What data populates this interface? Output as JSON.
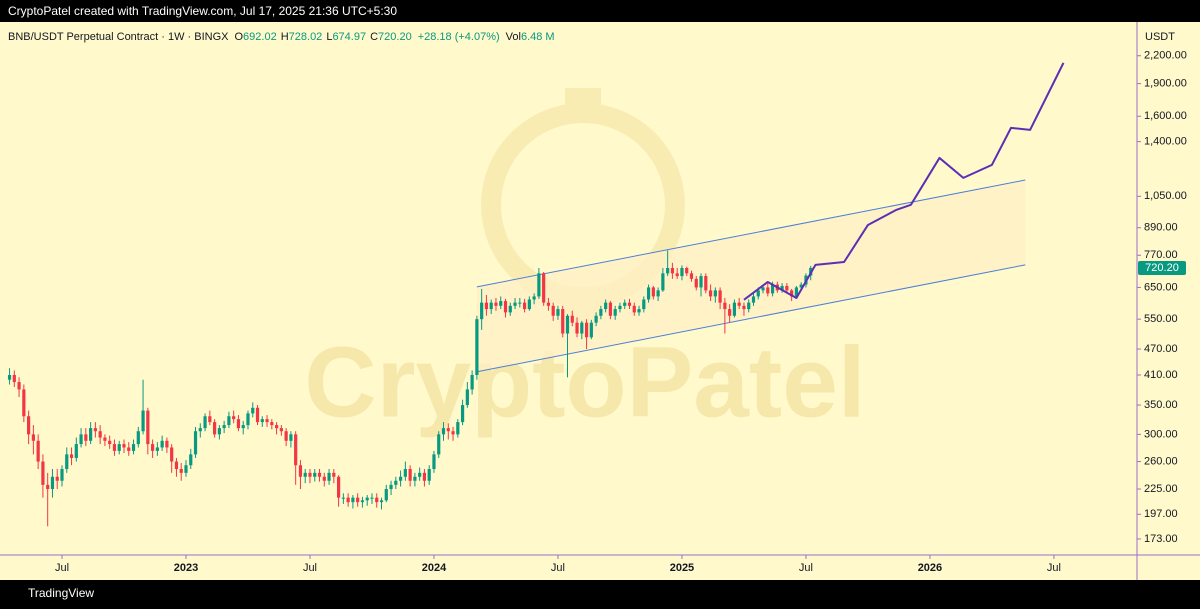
{
  "topbar": "CryptoPatel created with TradingView.com, Jul 17, 2025 21:36 UTC+5:30",
  "footer": "TradingView",
  "watermark": "CryptoPatel",
  "chart_data": {
    "type": "candlestick",
    "title": "BNB/USDT Perpetual Contract · 1W · BINGX",
    "legend_items": [
      {
        "label": "O",
        "value": "692.02"
      },
      {
        "label": "H",
        "value": "728.02"
      },
      {
        "label": "L",
        "value": "674.97"
      },
      {
        "label": "C",
        "value": "720.20"
      }
    ],
    "change": "+28.18 (+4.07%)",
    "volume": {
      "label": "Vol",
      "value": "6.48 M"
    },
    "currency": "USDT",
    "last_label": "720.20",
    "up_color": "#089981",
    "down_color": "#f23645",
    "log_scale": true,
    "xlim": [
      -2,
      236
    ],
    "ylim": [
      159,
      2600
    ],
    "xticks": [
      {
        "value": 11,
        "label": "Jul"
      },
      {
        "value": 37,
        "label": "2023"
      },
      {
        "value": 63,
        "label": "Jul"
      },
      {
        "value": 89,
        "label": "2024"
      },
      {
        "value": 115,
        "label": "Jul"
      },
      {
        "value": 141,
        "label": "2025"
      },
      {
        "value": 167,
        "label": "Jul"
      },
      {
        "value": 193,
        "label": "2026"
      },
      {
        "value": 219,
        "label": "Jul"
      }
    ],
    "yticks": [
      {
        "value": 173,
        "label": "173.00"
      },
      {
        "value": 197,
        "label": "197.00"
      },
      {
        "value": 225,
        "label": "225.00"
      },
      {
        "value": 260,
        "label": "260.00"
      },
      {
        "value": 300,
        "label": "300.00"
      },
      {
        "value": 350,
        "label": "350.00"
      },
      {
        "value": 410,
        "label": "410.00"
      },
      {
        "value": 470,
        "label": "470.00"
      },
      {
        "value": 550,
        "label": "550.00"
      },
      {
        "value": 650,
        "label": "650.00"
      },
      {
        "value": 770,
        "label": "770.00"
      },
      {
        "value": 890,
        "label": "890.00"
      },
      {
        "value": 1050,
        "label": "1,050.00"
      },
      {
        "value": 1400,
        "label": "1,400.00"
      },
      {
        "value": 1600,
        "label": "1,600.00"
      },
      {
        "value": 1900,
        "label": "1,900.00"
      },
      {
        "value": 2200,
        "label": "2,200.00"
      }
    ],
    "open": [
      400,
      410,
      395,
      380,
      330,
      300,
      290,
      260,
      230,
      225,
      240,
      235,
      250,
      270,
      265,
      285,
      300,
      290,
      310,
      305,
      295,
      290,
      285,
      275,
      285,
      280,
      275,
      285,
      305,
      340,
      285,
      275,
      280,
      290,
      280,
      260,
      250,
      245,
      255,
      270,
      305,
      310,
      330,
      320,
      300,
      310,
      315,
      330,
      325,
      310,
      315,
      335,
      345,
      320,
      325,
      320,
      315,
      310,
      305,
      290,
      300,
      255,
      240,
      245,
      240,
      245,
      240,
      235,
      245,
      240,
      215,
      215,
      210,
      215,
      210,
      212,
      215,
      215,
      210,
      212,
      225,
      230,
      235,
      240,
      250,
      235,
      240,
      245,
      235,
      250,
      270,
      300,
      310,
      305,
      300,
      320,
      350,
      380,
      410,
      550,
      600,
      580,
      600,
      590,
      605,
      570,
      590,
      600,
      600,
      580,
      610,
      620,
      700,
      600,
      590,
      560,
      580,
      510,
      560,
      540,
      510,
      540,
      500,
      540,
      560,
      580,
      600,
      560,
      580,
      590,
      600,
      590,
      570,
      580,
      610,
      650,
      620,
      640,
      700,
      720,
      700,
      690,
      720,
      700,
      680,
      650,
      690,
      640,
      620,
      640,
      600,
      580,
      560,
      600,
      590,
      580,
      600,
      620,
      640,
      650,
      630,
      660,
      640,
      655,
      640,
      620,
      650,
      660,
      692.02
    ],
    "high": [
      425,
      420,
      405,
      390,
      340,
      315,
      300,
      270,
      245,
      250,
      250,
      255,
      280,
      280,
      295,
      310,
      310,
      320,
      320,
      315,
      300,
      298,
      292,
      290,
      292,
      288,
      292,
      312,
      400,
      345,
      292,
      288,
      298,
      295,
      285,
      265,
      258,
      262,
      278,
      312,
      318,
      335,
      340,
      325,
      315,
      322,
      338,
      340,
      332,
      322,
      340,
      355,
      350,
      330,
      332,
      325,
      320,
      315,
      310,
      305,
      305,
      262,
      250,
      250,
      250,
      250,
      245,
      250,
      250,
      242,
      220,
      220,
      218,
      220,
      216,
      218,
      220,
      220,
      215,
      230,
      235,
      240,
      248,
      260,
      255,
      245,
      252,
      250,
      255,
      275,
      305,
      320,
      318,
      312,
      325,
      360,
      395,
      420,
      560,
      645,
      625,
      610,
      615,
      620,
      612,
      600,
      615,
      615,
      612,
      620,
      630,
      720,
      705,
      615,
      600,
      590,
      590,
      565,
      575,
      555,
      545,
      550,
      548,
      570,
      590,
      610,
      605,
      590,
      600,
      610,
      612,
      600,
      590,
      620,
      660,
      655,
      650,
      720,
      790,
      740,
      720,
      730,
      725,
      710,
      690,
      700,
      700,
      660,
      650,
      650,
      615,
      595,
      610,
      615,
      600,
      610,
      630,
      650,
      660,
      665,
      670,
      670,
      665,
      665,
      645,
      655,
      668,
      700,
      728.02
    ],
    "low": [
      390,
      385,
      365,
      320,
      285,
      270,
      250,
      215,
      185,
      215,
      225,
      228,
      245,
      255,
      260,
      280,
      282,
      285,
      295,
      285,
      282,
      278,
      268,
      270,
      272,
      268,
      270,
      280,
      300,
      270,
      265,
      268,
      275,
      272,
      245,
      240,
      235,
      240,
      250,
      265,
      295,
      305,
      315,
      295,
      292,
      302,
      310,
      318,
      305,
      300,
      308,
      328,
      315,
      312,
      312,
      308,
      300,
      298,
      282,
      280,
      230,
      225,
      232,
      232,
      234,
      234,
      228,
      230,
      232,
      205,
      208,
      205,
      203,
      205,
      204,
      206,
      208,
      204,
      202,
      210,
      218,
      225,
      228,
      235,
      228,
      228,
      235,
      228,
      230,
      245,
      265,
      290,
      292,
      290,
      295,
      315,
      345,
      370,
      400,
      520,
      560,
      565,
      575,
      580,
      555,
      560,
      580,
      585,
      570,
      575,
      595,
      612,
      590,
      575,
      545,
      548,
      500,
      405,
      530,
      500,
      495,
      470,
      495,
      530,
      550,
      570,
      550,
      548,
      570,
      580,
      580,
      560,
      560,
      570,
      600,
      610,
      605,
      635,
      690,
      680,
      680,
      675,
      690,
      670,
      640,
      620,
      630,
      605,
      600,
      580,
      510,
      540,
      555,
      580,
      560,
      570,
      590,
      610,
      630,
      620,
      620,
      632,
      632,
      630,
      605,
      612,
      640,
      650,
      674.97
    ],
    "close": [
      410,
      395,
      380,
      330,
      300,
      290,
      260,
      230,
      225,
      240,
      235,
      250,
      270,
      265,
      285,
      300,
      290,
      310,
      305,
      295,
      290,
      285,
      275,
      285,
      280,
      275,
      285,
      305,
      340,
      285,
      275,
      280,
      290,
      280,
      260,
      250,
      245,
      255,
      270,
      305,
      310,
      330,
      320,
      300,
      310,
      315,
      330,
      325,
      310,
      315,
      335,
      345,
      320,
      325,
      320,
      315,
      310,
      305,
      290,
      300,
      255,
      240,
      245,
      240,
      245,
      240,
      235,
      245,
      240,
      215,
      215,
      210,
      215,
      210,
      212,
      215,
      215,
      210,
      212,
      225,
      230,
      235,
      240,
      250,
      235,
      240,
      245,
      235,
      250,
      270,
      300,
      310,
      305,
      300,
      320,
      350,
      380,
      410,
      550,
      600,
      580,
      600,
      590,
      605,
      570,
      590,
      600,
      600,
      580,
      610,
      620,
      700,
      600,
      590,
      560,
      580,
      510,
      560,
      540,
      510,
      540,
      500,
      540,
      560,
      580,
      600,
      560,
      580,
      590,
      600,
      590,
      570,
      580,
      610,
      650,
      620,
      640,
      700,
      720,
      700,
      690,
      720,
      700,
      680,
      650,
      690,
      640,
      620,
      640,
      600,
      580,
      560,
      600,
      590,
      580,
      600,
      620,
      640,
      650,
      630,
      660,
      640,
      655,
      640,
      620,
      650,
      660,
      692.02,
      720.2
    ],
    "channel": {
      "color": "#4a7fd8",
      "x": [
        98,
        213
      ],
      "upper": [
        652,
        1144
      ],
      "lower": [
        417,
        732
      ]
    },
    "projection": {
      "color": "#5b2fb5",
      "x": [
        154,
        159,
        165,
        169,
        175,
        180,
        186,
        189,
        195,
        200,
        206,
        210,
        214,
        221
      ],
      "values": [
        609,
        669,
        615,
        732,
        743,
        903,
        978,
        1004,
        1285,
        1157,
        1239,
        1505,
        1489,
        2119
      ]
    }
  }
}
